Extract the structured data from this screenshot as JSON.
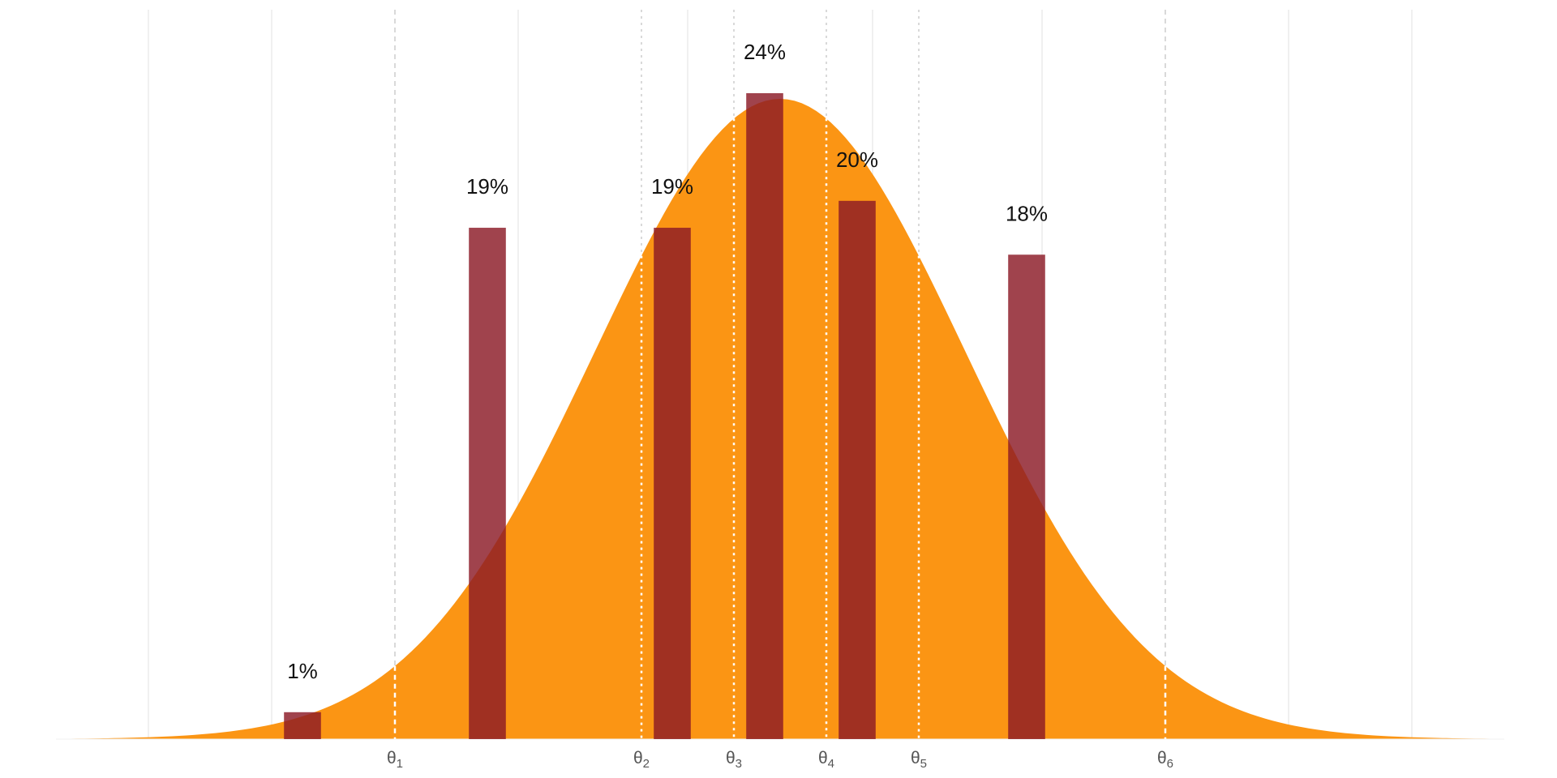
{
  "chart_data": {
    "type": "bar",
    "title": "",
    "xlabel": "",
    "ylabel": "",
    "grid": true,
    "legend": "none",
    "xlim": [
      -2.35,
      2.35
    ],
    "ylim": [
      0,
      0.262
    ],
    "x_grid": [
      -2.05,
      -1.65,
      -0.85,
      -0.3,
      0.3,
      0.85,
      1.65,
      2.05
    ],
    "density": {
      "mean": 0,
      "sd": 0.6,
      "color": "#FB9514"
    },
    "bars": {
      "color": "#8B1A26",
      "width": 0.12,
      "x": [
        -1.55,
        -0.95,
        -0.35,
        -0.05,
        0.25,
        0.8
      ],
      "values": [
        1,
        19,
        19,
        24,
        20,
        18
      ],
      "labels": [
        "1%",
        "19%",
        "19%",
        "24%",
        "20%",
        "18%"
      ]
    },
    "thresholds": [
      {
        "x": -1.25,
        "symbol": "θ",
        "sub": "1",
        "style": "dashed"
      },
      {
        "x": -0.45,
        "symbol": "θ",
        "sub": "2",
        "style": "dotted"
      },
      {
        "x": -0.15,
        "symbol": "θ",
        "sub": "3",
        "style": "dotted"
      },
      {
        "x": 0.15,
        "symbol": "θ",
        "sub": "4",
        "style": "dotted"
      },
      {
        "x": 0.45,
        "symbol": "θ",
        "sub": "5",
        "style": "dotted"
      },
      {
        "x": 1.25,
        "symbol": "θ",
        "sub": "6",
        "style": "dashed"
      }
    ]
  }
}
